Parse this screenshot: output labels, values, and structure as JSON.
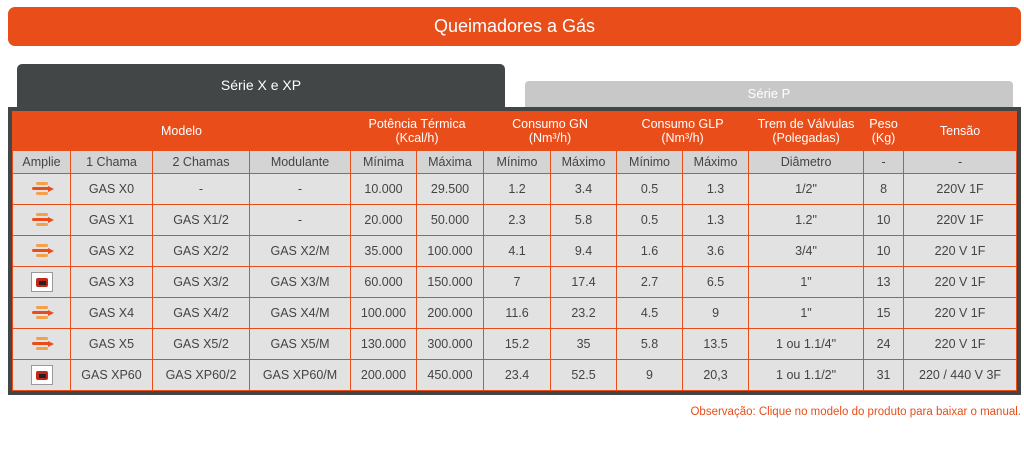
{
  "header": {
    "title": "Queimadores a Gás"
  },
  "tabs": [
    {
      "label": "Série X e XP",
      "active": true
    },
    {
      "label": "Série P",
      "active": false
    }
  ],
  "table": {
    "group_headers": {
      "modelo": "Modelo",
      "potencia": "Potência Térmica",
      "potencia_unit": "(Kcal/h)",
      "consumo_gn": "Consumo GN",
      "consumo_gn_unit": "(Nm³/h)",
      "consumo_glp": "Consumo GLP",
      "consumo_glp_unit": "(Nm³/h)",
      "trem": "Trem de Válvulas",
      "trem_unit": "(Polegadas)",
      "peso": "Peso",
      "peso_unit": "(Kg)",
      "tensao": "Tensão"
    },
    "sub_headers": [
      "Amplie",
      "1 Chama",
      "2 Chamas",
      "Modulante",
      "Mínima",
      "Máxima",
      "Mínimo",
      "Máximo",
      "Mínimo",
      "Máximo",
      "Diâmetro",
      "-",
      "-"
    ],
    "rows": [
      {
        "icon": "flame-icon",
        "cells": [
          "GAS X0",
          "-",
          "-",
          "10.000",
          "29.500",
          "1.2",
          "3.4",
          "0.5",
          "1.3",
          "1/2\"",
          "8",
          "220V 1F"
        ]
      },
      {
        "icon": "flame-icon",
        "cells": [
          "GAS X1",
          "GAS X1/2",
          "-",
          "20.000",
          "50.000",
          "2.3",
          "5.8",
          "0.5",
          "1.3",
          "1.2\"",
          "10",
          "220V 1F"
        ]
      },
      {
        "icon": "flame-icon",
        "cells": [
          "GAS X2",
          "GAS X2/2",
          "GAS X2/M",
          "35.000",
          "100.000",
          "4.1",
          "9.4",
          "1.6",
          "3.6",
          "3/4\"",
          "10",
          "220 V 1F"
        ]
      },
      {
        "icon": "burner-icon",
        "cells": [
          "GAS X3",
          "GAS X3/2",
          "GAS X3/M",
          "60.000",
          "150.000",
          "7",
          "17.4",
          "2.7",
          "6.5",
          "1\"",
          "13",
          "220 V 1F"
        ]
      },
      {
        "icon": "flame-icon",
        "cells": [
          "GAS X4",
          "GAS X4/2",
          "GAS X4/M",
          "100.000",
          "200.000",
          "11.6",
          "23.2",
          "4.5",
          "9",
          "1\"",
          "15",
          "220 V 1F"
        ]
      },
      {
        "icon": "flame-icon",
        "cells": [
          "GAS X5",
          "GAS X5/2",
          "GAS X5/M",
          "130.000",
          "300.000",
          "15.2",
          "35",
          "5.8",
          "13.5",
          "1 ou 1.1/4\"",
          "24",
          "220 V 1F"
        ]
      },
      {
        "icon": "burner-icon",
        "cells": [
          "GAS XP60",
          "GAS XP60/2",
          "GAS XP60/M",
          "200.000",
          "450.000",
          "23.4",
          "52.5",
          "9",
          "20,3",
          "1 ou 1.1/2\"",
          "31",
          "220 / 440 V 3F"
        ]
      }
    ]
  },
  "footer": {
    "note": "Observação: Clique no modelo do produto para baixar o manual."
  },
  "colors": {
    "accent": "#e84d1a",
    "dark": "#434647",
    "inactive_tab": "#c8c8c8"
  }
}
